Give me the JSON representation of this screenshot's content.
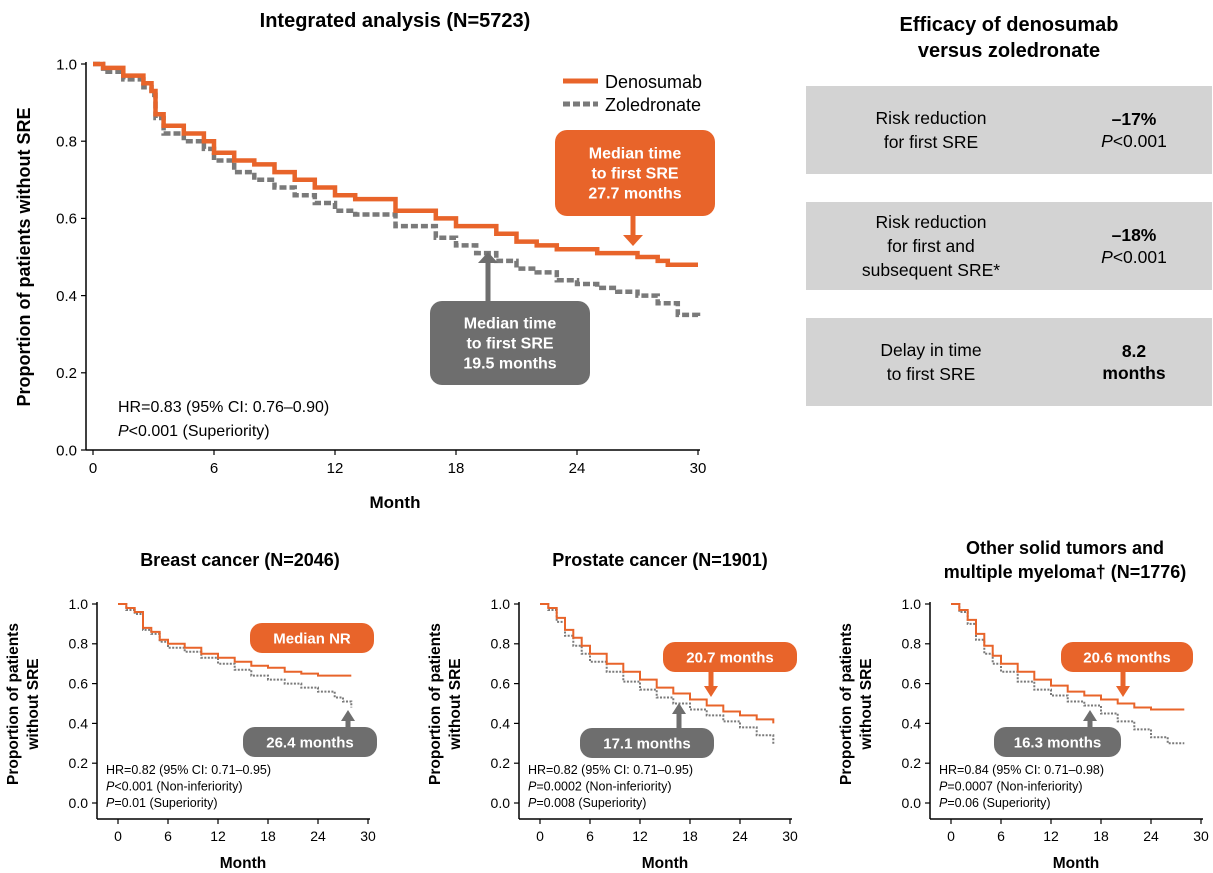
{
  "main": {
    "title": "Integrated analysis (N=5723)",
    "ylabel": "Proportion of patients without SRE",
    "xlabel": "Month",
    "legend": [
      "Denosumab",
      "Zoledronate"
    ],
    "hr_text": "HR=0.83 (95% CI: 0.76–0.90)",
    "p_italic": "P",
    "p_rest": "<0.001 (Superiority)",
    "callout_deno": [
      "Median time",
      "to first SRE",
      "27.7 months"
    ],
    "callout_zole": [
      "Median time",
      "to first SRE",
      "19.5 months"
    ]
  },
  "efficacy": {
    "title_line1": "Efficacy of denosumab",
    "title_line2": "versus zoledronate",
    "rows": [
      {
        "label": [
          "Risk reduction",
          "for first SRE"
        ],
        "value": "–17%",
        "p_italic": "P",
        "p_rest": "<0.001"
      },
      {
        "label": [
          "Risk reduction",
          "for first and",
          "subsequent SRE*"
        ],
        "value": "–18%",
        "p_italic": "P",
        "p_rest": "<0.001"
      },
      {
        "label": [
          "Delay in time",
          "to first SRE"
        ],
        "value_line1": "8.2",
        "value_line2": "months"
      }
    ]
  },
  "breast": {
    "title": "Breast cancer (N=2046)",
    "ylabel_line1": "Proportion of patients",
    "ylabel_line2": "without SRE",
    "xlabel": "Month",
    "callout_deno": "Median NR",
    "callout_zole": "26.4 months",
    "stats": [
      {
        "plain": "HR=0.82 (95% CI: 0.71–0.95)"
      },
      {
        "italic": "P",
        "plain": "<0.001 (Non-inferiority)"
      },
      {
        "italic": "P",
        "plain": "=0.01 (Superiority)"
      }
    ]
  },
  "prostate": {
    "title": "Prostate cancer (N=1901)",
    "ylabel_line1": "Proportion of patients",
    "ylabel_line2": "without SRE",
    "xlabel": "Month",
    "callout_deno": "20.7 months",
    "callout_zole": "17.1 months",
    "stats": [
      {
        "plain": "HR=0.82 (95% CI: 0.71–0.95)"
      },
      {
        "italic": "P",
        "plain": "=0.0002 (Non-inferiority)"
      },
      {
        "italic": "P",
        "plain": "=0.008 (Superiority)"
      }
    ]
  },
  "other": {
    "title_line1": "Other solid tumors and",
    "title_line2": "multiple myeloma† (N=1776)",
    "ylabel_line1": "Proportion of patients",
    "ylabel_line2": "without SRE",
    "xlabel": "Month",
    "callout_deno": "20.6 months",
    "callout_zole": "16.3 months",
    "stats": [
      {
        "plain": "HR=0.84 (95% CI: 0.71–0.98)"
      },
      {
        "italic": "P",
        "plain": "=0.0007 (Non-inferiority)"
      },
      {
        "italic": "P",
        "plain": "=0.06 (Superiority)"
      }
    ]
  },
  "colors": {
    "denosumab": "#e8642a",
    "zoledronate": "#7a7a7a",
    "box_grey": "#d3d3d3",
    "callout_grey": "#6e6e6e"
  },
  "chart_data": [
    {
      "type": "line",
      "title": "Integrated analysis (N=5723)",
      "xlabel": "Month",
      "ylabel": "Proportion of patients without SRE",
      "xlim": [
        0,
        30
      ],
      "ylim": [
        0,
        1.0
      ],
      "xticks": [
        0,
        6,
        12,
        18,
        24,
        30
      ],
      "yticks": [
        0.0,
        0.2,
        0.4,
        0.6,
        0.8,
        1.0
      ],
      "series": [
        {
          "name": "Denosumab",
          "x": [
            0,
            0.5,
            1.5,
            2.5,
            2.9,
            3.1,
            3.5,
            4.5,
            5.5,
            6,
            7,
            8,
            9,
            10,
            11,
            12,
            13,
            15,
            17,
            18,
            20,
            21,
            22,
            23,
            24,
            25,
            26,
            27,
            28,
            28.5,
            30
          ],
          "y": [
            1.0,
            0.99,
            0.97,
            0.95,
            0.93,
            0.87,
            0.84,
            0.82,
            0.8,
            0.77,
            0.75,
            0.74,
            0.72,
            0.7,
            0.68,
            0.66,
            0.65,
            0.62,
            0.6,
            0.58,
            0.56,
            0.54,
            0.53,
            0.52,
            0.52,
            0.51,
            0.51,
            0.5,
            0.49,
            0.48,
            0.48
          ]
        },
        {
          "name": "Zoledronate",
          "x": [
            0,
            0.5,
            1.5,
            2.5,
            2.9,
            3.1,
            3.5,
            4.5,
            5.5,
            6,
            7,
            8,
            9,
            10,
            11,
            12,
            13,
            15,
            17,
            18,
            19,
            20,
            21,
            22,
            23,
            24,
            25,
            26,
            27,
            28,
            29,
            30
          ],
          "y": [
            1.0,
            0.98,
            0.96,
            0.94,
            0.92,
            0.86,
            0.82,
            0.8,
            0.78,
            0.75,
            0.72,
            0.7,
            0.68,
            0.66,
            0.64,
            0.62,
            0.61,
            0.58,
            0.55,
            0.53,
            0.51,
            0.49,
            0.47,
            0.46,
            0.44,
            0.43,
            0.42,
            0.41,
            0.4,
            0.38,
            0.35,
            0.34
          ]
        }
      ],
      "annotations": [
        "HR=0.83 (95% CI: 0.76–0.90)",
        "P<0.001 (Superiority)",
        "Median time to first SRE 27.7 months",
        "Median time to first SRE 19.5 months"
      ],
      "legend_position": "top-right",
      "grid": false
    },
    {
      "type": "line",
      "title": "Breast cancer (N=2046)",
      "xlabel": "Month",
      "ylabel": "Proportion of patients without SRE",
      "xlim": [
        0,
        30
      ],
      "ylim": [
        0,
        1.0
      ],
      "xticks": [
        0,
        6,
        12,
        18,
        24,
        30
      ],
      "yticks": [
        0.0,
        0.2,
        0.4,
        0.6,
        0.8,
        1.0
      ],
      "series": [
        {
          "name": "Denosumab",
          "x": [
            0,
            1,
            2,
            3,
            4,
            5,
            6,
            8,
            10,
            12,
            14,
            16,
            18,
            20,
            22,
            24,
            26,
            28
          ],
          "y": [
            1.0,
            0.98,
            0.96,
            0.88,
            0.86,
            0.82,
            0.8,
            0.78,
            0.75,
            0.73,
            0.71,
            0.69,
            0.68,
            0.66,
            0.65,
            0.64,
            0.64,
            0.64
          ]
        },
        {
          "name": "Zoledronate",
          "x": [
            0,
            1,
            2,
            3,
            4,
            5,
            6,
            8,
            10,
            12,
            14,
            16,
            18,
            20,
            22,
            24,
            26,
            27,
            28
          ],
          "y": [
            1.0,
            0.97,
            0.95,
            0.87,
            0.85,
            0.81,
            0.78,
            0.76,
            0.73,
            0.7,
            0.67,
            0.64,
            0.62,
            0.6,
            0.58,
            0.56,
            0.53,
            0.51,
            0.48
          ]
        }
      ],
      "annotations": [
        "Median NR",
        "26.4 months"
      ]
    },
    {
      "type": "line",
      "title": "Prostate cancer (N=1901)",
      "xlabel": "Month",
      "ylabel": "Proportion of patients without SRE",
      "xlim": [
        0,
        30
      ],
      "ylim": [
        0,
        1.0
      ],
      "xticks": [
        0,
        6,
        12,
        18,
        24,
        30
      ],
      "yticks": [
        0.0,
        0.2,
        0.4,
        0.6,
        0.8,
        1.0
      ],
      "series": [
        {
          "name": "Denosumab",
          "x": [
            0,
            1,
            2,
            3,
            4,
            5,
            6,
            8,
            10,
            12,
            14,
            16,
            18,
            20,
            22,
            24,
            26,
            28
          ],
          "y": [
            1.0,
            0.98,
            0.93,
            0.87,
            0.83,
            0.79,
            0.75,
            0.7,
            0.66,
            0.62,
            0.58,
            0.55,
            0.52,
            0.49,
            0.46,
            0.44,
            0.42,
            0.4
          ]
        },
        {
          "name": "Zoledronate",
          "x": [
            0,
            1,
            2,
            3,
            4,
            5,
            6,
            8,
            10,
            12,
            14,
            16,
            18,
            20,
            22,
            24,
            26,
            28
          ],
          "y": [
            1.0,
            0.97,
            0.91,
            0.84,
            0.79,
            0.75,
            0.71,
            0.66,
            0.61,
            0.57,
            0.53,
            0.5,
            0.47,
            0.44,
            0.41,
            0.38,
            0.34,
            0.29
          ]
        }
      ],
      "annotations": [
        "20.7 months",
        "17.1 months"
      ]
    },
    {
      "type": "line",
      "title": "Other solid tumors and multiple myeloma† (N=1776)",
      "xlabel": "Month",
      "ylabel": "Proportion of patients without SRE",
      "xlim": [
        0,
        30
      ],
      "ylim": [
        0,
        1.0
      ],
      "xticks": [
        0,
        6,
        12,
        18,
        24,
        30
      ],
      "yticks": [
        0.0,
        0.2,
        0.4,
        0.6,
        0.8,
        1.0
      ],
      "series": [
        {
          "name": "Denosumab",
          "x": [
            0,
            1,
            2,
            3,
            4,
            5,
            6,
            8,
            10,
            12,
            14,
            16,
            18,
            20,
            22,
            24,
            26,
            28
          ],
          "y": [
            1.0,
            0.97,
            0.92,
            0.85,
            0.79,
            0.74,
            0.7,
            0.66,
            0.62,
            0.59,
            0.56,
            0.54,
            0.52,
            0.5,
            0.48,
            0.47,
            0.47,
            0.47
          ]
        },
        {
          "name": "Zoledronate",
          "x": [
            0,
            1,
            2,
            3,
            4,
            5,
            6,
            8,
            10,
            12,
            14,
            16,
            18,
            20,
            22,
            24,
            26,
            28
          ],
          "y": [
            1.0,
            0.96,
            0.9,
            0.82,
            0.75,
            0.7,
            0.66,
            0.61,
            0.57,
            0.54,
            0.51,
            0.49,
            0.45,
            0.41,
            0.37,
            0.33,
            0.3,
            0.3
          ]
        }
      ],
      "annotations": [
        "20.6 months",
        "16.3 months"
      ]
    }
  ]
}
